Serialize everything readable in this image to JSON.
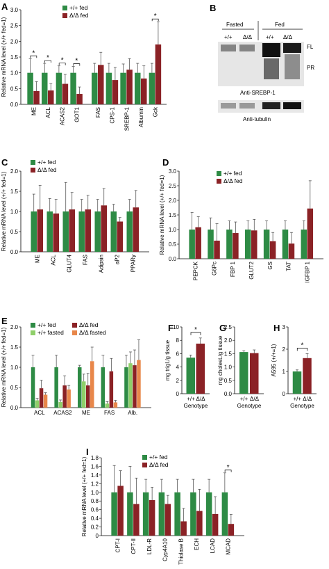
{
  "colors": {
    "green": "#2e8b45",
    "red": "#8b2226",
    "lightgreen": "#8fcf6a",
    "orange": "#e8874a",
    "error": "#555555"
  },
  "panels": {
    "A": {
      "label": "A"
    },
    "B": {
      "label": "B",
      "lane_header_fasted": "Fasted",
      "lane_header_fed": "Fed",
      "lane_left": "+/+",
      "lane_right": "Δ/Δ",
      "band_fl": "FL",
      "band_pr": "PR",
      "caption_srebp": "Anti-SREBP-1",
      "caption_tubulin": "Anti-tubulin"
    },
    "C": {
      "label": "C"
    },
    "D": {
      "label": "D"
    },
    "E": {
      "label": "E"
    },
    "F": {
      "label": "F"
    },
    "G": {
      "label": "G"
    },
    "H": {
      "label": "H"
    },
    "I": {
      "label": "I"
    }
  },
  "chart_data": [
    {
      "id": "A",
      "type": "bar",
      "ylabel": "Relative mRNA level (+/+ fed=1)",
      "ylim": [
        0,
        3.0
      ],
      "yticks": [
        "0.0",
        "0.5",
        "1.0",
        "1.5",
        "2.0",
        "2.5",
        "3.0"
      ],
      "categories": [
        "ME",
        "ACL",
        "ACAS2",
        "GOT1",
        "FAS",
        "CPS-1",
        "SREBP-1",
        "Albumin",
        "Gck"
      ],
      "series": [
        {
          "name": "+/+ fed",
          "values": [
            1,
            1,
            1,
            1,
            1,
            1,
            1,
            1,
            1
          ],
          "err": [
            0.45,
            0.3,
            0.22,
            0.2,
            0.3,
            0.3,
            0.28,
            0.3,
            0.3
          ]
        },
        {
          "name": "Δ/Δ fed",
          "values": [
            0.42,
            0.44,
            0.65,
            0.33,
            1.25,
            0.77,
            1.1,
            0.82,
            1.9
          ],
          "err": [
            0.3,
            0.22,
            0.3,
            0.22,
            0.4,
            0.4,
            0.35,
            0.4,
            0.72
          ]
        }
      ],
      "significant": [
        "ME",
        "ACL",
        "ACAS2",
        "GOT1",
        "Gck"
      ],
      "sig_label": "*",
      "legend": "top"
    },
    {
      "id": "C",
      "type": "bar",
      "ylabel": "Relative mRNA level (+/+ fed=1)",
      "ylim": [
        0,
        2.0
      ],
      "yticks": [
        "0.0",
        "0.5",
        "1.0",
        "1.5",
        "2.0"
      ],
      "categories": [
        "ME",
        "ACL",
        "GLUT4",
        "FAS",
        "Adipsin",
        "aP2",
        "PPARγ"
      ],
      "series": [
        {
          "name": "+/+ fed",
          "values": [
            1,
            1,
            1,
            1,
            1,
            1,
            1
          ],
          "err": [
            0.43,
            0.32,
            0.72,
            0.3,
            0.3,
            0.18,
            0.3
          ]
        },
        {
          "name": "Δ/Δ fed",
          "values": [
            1.05,
            0.95,
            1.05,
            1.05,
            1.15,
            0.75,
            1.1
          ],
          "err": [
            0.6,
            0.35,
            0.42,
            0.35,
            0.42,
            0.1,
            0.42
          ]
        }
      ],
      "legend": "top"
    },
    {
      "id": "D",
      "type": "bar",
      "ylabel": "Relative mRNA level (+/+ fed=1)",
      "ylim": [
        0,
        3.0
      ],
      "yticks": [
        "0.0",
        "0.5",
        "1.0",
        "1.5",
        "2.0",
        "2.5",
        "3.0"
      ],
      "categories": [
        "PEPCK",
        "G6Pc",
        "FBP 1",
        "GLUT2",
        "GS",
        "TAT",
        "IGFBP 1"
      ],
      "series": [
        {
          "name": "+/+ fed",
          "values": [
            1,
            1,
            1,
            1,
            1,
            1,
            1
          ],
          "err": [
            0.58,
            0.4,
            0.3,
            0.3,
            0.3,
            0.3,
            0.3
          ]
        },
        {
          "name": "Δ/Δ fed",
          "values": [
            1.08,
            0.62,
            0.88,
            0.97,
            0.6,
            0.52,
            1.72
          ],
          "err": [
            0.36,
            0.58,
            0.38,
            0.38,
            0.3,
            0.38,
            0.95
          ]
        }
      ],
      "legend": "top"
    },
    {
      "id": "E",
      "type": "bar",
      "ylabel": "Relative mRNA level (+/+ fed=1)",
      "ylim": [
        0,
        2.0
      ],
      "yticks": [
        "0.0",
        "0.5",
        "1.0",
        "1.5",
        "2.0"
      ],
      "categories": [
        "ACL",
        "ACAS2",
        "ME",
        "FAS",
        "Alb."
      ],
      "series": [
        {
          "name": "+/+ fed",
          "values": [
            1,
            1,
            1,
            1,
            1
          ],
          "err": [
            0.3,
            0.3,
            0.05,
            0.3,
            0.3
          ]
        },
        {
          "name": "+/+ fasted",
          "values": [
            0.18,
            0.14,
            0.65,
            0.1,
            1.1
          ],
          "err": [
            0.05,
            0.05,
            0.18,
            0.05,
            0.28
          ]
        },
        {
          "name": "Δ/Δ fed",
          "values": [
            0.48,
            0.55,
            0.55,
            0.9,
            1.05
          ],
          "err": [
            0.2,
            0.24,
            0.3,
            0.32,
            0.38
          ]
        },
        {
          "name": "Δ/Δ fasted",
          "values": [
            0.32,
            0.45,
            1.15,
            0.13,
            1.18
          ],
          "err": [
            0.05,
            0.1,
            0.35,
            0.05,
            0.5
          ]
        }
      ],
      "legend": "top"
    },
    {
      "id": "F",
      "type": "bar",
      "ylabel": "mg trigl./g tissue",
      "xlabel": "Genotype",
      "ylim": [
        0,
        10
      ],
      "yticks": [
        "0",
        "2",
        "4",
        "6",
        "8",
        "10"
      ],
      "categories": [
        "+/+",
        "Δ/Δ"
      ],
      "values": [
        5.4,
        7.5
      ],
      "err": [
        0.4,
        0.85
      ],
      "significant": true,
      "sig_label": "*"
    },
    {
      "id": "G",
      "type": "bar",
      "ylabel": "mg cholest./g tissue",
      "xlabel": "Genotype",
      "ylim": [
        0,
        2.5
      ],
      "yticks": [
        "0.0",
        "0.5",
        "1.0",
        "1.5",
        "2.0",
        "2.5"
      ],
      "categories": [
        "+/+",
        "Δ/Δ"
      ],
      "values": [
        1.56,
        1.52
      ],
      "err": [
        0.05,
        0.12
      ]
    },
    {
      "id": "H",
      "type": "bar",
      "ylabel": "A595 (+/+=1)",
      "xlabel": "Genotype",
      "ylim": [
        0,
        3
      ],
      "yticks": [
        "0",
        "1",
        "2",
        "3"
      ],
      "categories": [
        "+/+",
        "Δ/Δ"
      ],
      "values": [
        1.0,
        1.6
      ],
      "err": [
        0.07,
        0.2
      ],
      "significant": true,
      "sig_label": "*"
    },
    {
      "id": "I",
      "type": "bar",
      "ylabel": "Relative mRNA level (+/+ fed=1)",
      "ylim": [
        0,
        1.8
      ],
      "yticks": [
        "0",
        "0.2",
        "0.4",
        "0.6",
        "0.8",
        "1.0",
        "1.2",
        "1.4",
        "1.6",
        "1.8"
      ],
      "categories": [
        "CPT-I",
        "CPT-II",
        "LDL-R",
        "Cyp4A10",
        "Thiolase B",
        "ECH",
        "LCAD",
        "MCAD"
      ],
      "series": [
        {
          "name": "+/+ fed",
          "values": [
            1,
            1,
            1,
            1,
            1,
            1,
            1,
            1
          ],
          "err": [
            0.62,
            0.6,
            0.3,
            0.3,
            0.3,
            0.3,
            0.3,
            0.45
          ]
        },
        {
          "name": "Δ/Δ fed",
          "values": [
            1.15,
            0.73,
            0.82,
            0.73,
            0.33,
            0.57,
            0.5,
            0.27
          ],
          "err": [
            0.35,
            0.6,
            0.3,
            0.2,
            0.3,
            0.5,
            0.4,
            0.22
          ]
        }
      ],
      "significant": [
        "MCAD"
      ],
      "sig_label": "*",
      "legend": "top"
    }
  ]
}
